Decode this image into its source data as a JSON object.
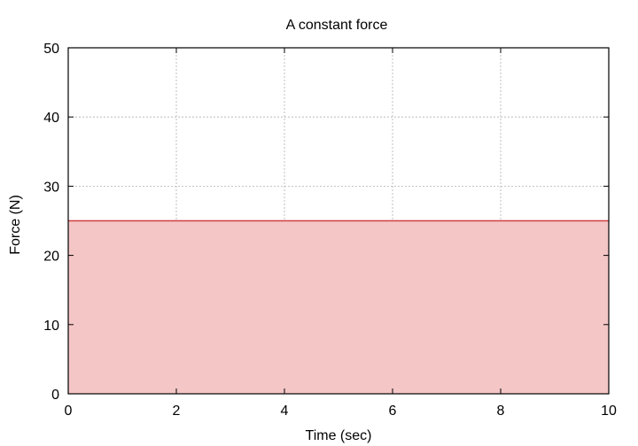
{
  "chart_data": {
    "type": "area",
    "title": "A constant force",
    "xlabel": "Time (sec)",
    "ylabel": "Force (N)",
    "xlim": [
      0,
      10
    ],
    "ylim": [
      0,
      50
    ],
    "xticks": [
      "0",
      "2",
      "4",
      "6",
      "8",
      "10"
    ],
    "yticks": [
      "0",
      "10",
      "20",
      "30",
      "40",
      "50"
    ],
    "grid": true,
    "series": [
      {
        "x": [
          0,
          10
        ],
        "y": [
          25,
          25
        ],
        "line_color": "#d04040",
        "fill_color": "#f4c6c6"
      }
    ]
  }
}
